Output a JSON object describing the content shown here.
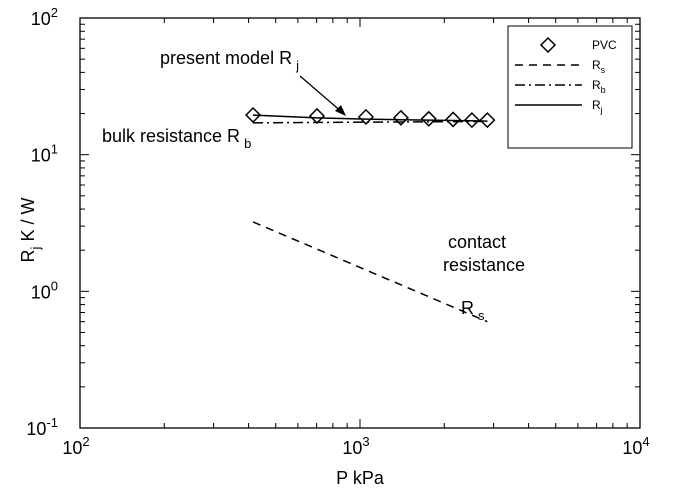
{
  "chart_data": {
    "type": "line",
    "x_label": {
      "text": "P    kPa"
    },
    "y_label": {
      "text": "R",
      "sub": "j",
      "rest": "     K / W"
    },
    "xlim": [
      100,
      10000
    ],
    "ylim": [
      0.1,
      100
    ],
    "log_x": true,
    "log_y": true,
    "xticks": [
      {
        "value": 100,
        "label": "10",
        "power": "2"
      },
      {
        "value": 1000,
        "label": "10",
        "power": "3"
      },
      {
        "value": 10000,
        "label": "10",
        "power": "4"
      }
    ],
    "yticks": [
      {
        "value": 0.1,
        "label": "10",
        "power": "-1"
      },
      {
        "value": 1,
        "label": "10",
        "power": "0"
      },
      {
        "value": 10,
        "label": "10",
        "power": "1"
      },
      {
        "value": 100,
        "label": "10",
        "power": "2"
      }
    ],
    "legend": "upper right",
    "series": [
      {
        "name": "PVC",
        "color": "#000000",
        "style": "markers",
        "x": [
          415,
          702,
          1050,
          1400,
          1760,
          2150,
          2510,
          2850
        ],
        "values": [
          19.5,
          19.2,
          18.9,
          18.6,
          18.3,
          18.1,
          17.9,
          17.9
        ]
      },
      {
        "name": "R",
        "sub": "s",
        "color": "#000000",
        "style": "dashed",
        "x": [
          415,
          2850
        ],
        "values": [
          3.22,
          0.6
        ]
      },
      {
        "name": "R",
        "sub": "b",
        "color": "#000000",
        "style": "dashdot",
        "x": [
          415,
          2850
        ],
        "values": [
          17.1,
          17.5
        ]
      },
      {
        "name": "R",
        "sub": "j",
        "color": "#000000",
        "style": "solid",
        "x": [
          415,
          702,
          1050,
          1400,
          1760,
          2150,
          2510,
          2850
        ],
        "values": [
          19.5,
          18.6,
          18.2,
          18.0,
          17.9,
          17.8,
          17.7,
          17.6
        ]
      }
    ],
    "annotations": [
      {
        "text": "present model R",
        "sub": "j"
      },
      {
        "text": "bulk resistance R",
        "sub": "b"
      },
      {
        "text": "contact",
        "sub": ""
      },
      {
        "text": "resistance",
        "sub": ""
      },
      {
        "text": "R",
        "sub": "s"
      }
    ]
  }
}
